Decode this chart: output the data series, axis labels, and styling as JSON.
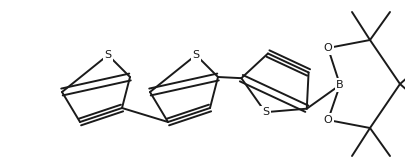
{
  "bg_color": "#ffffff",
  "line_color": "#1a1a1a",
  "line_width": 1.4,
  "figsize": [
    4.06,
    1.6
  ],
  "dpi": 100,
  "xlim": [
    0,
    406
  ],
  "ylim": [
    0,
    160
  ]
}
